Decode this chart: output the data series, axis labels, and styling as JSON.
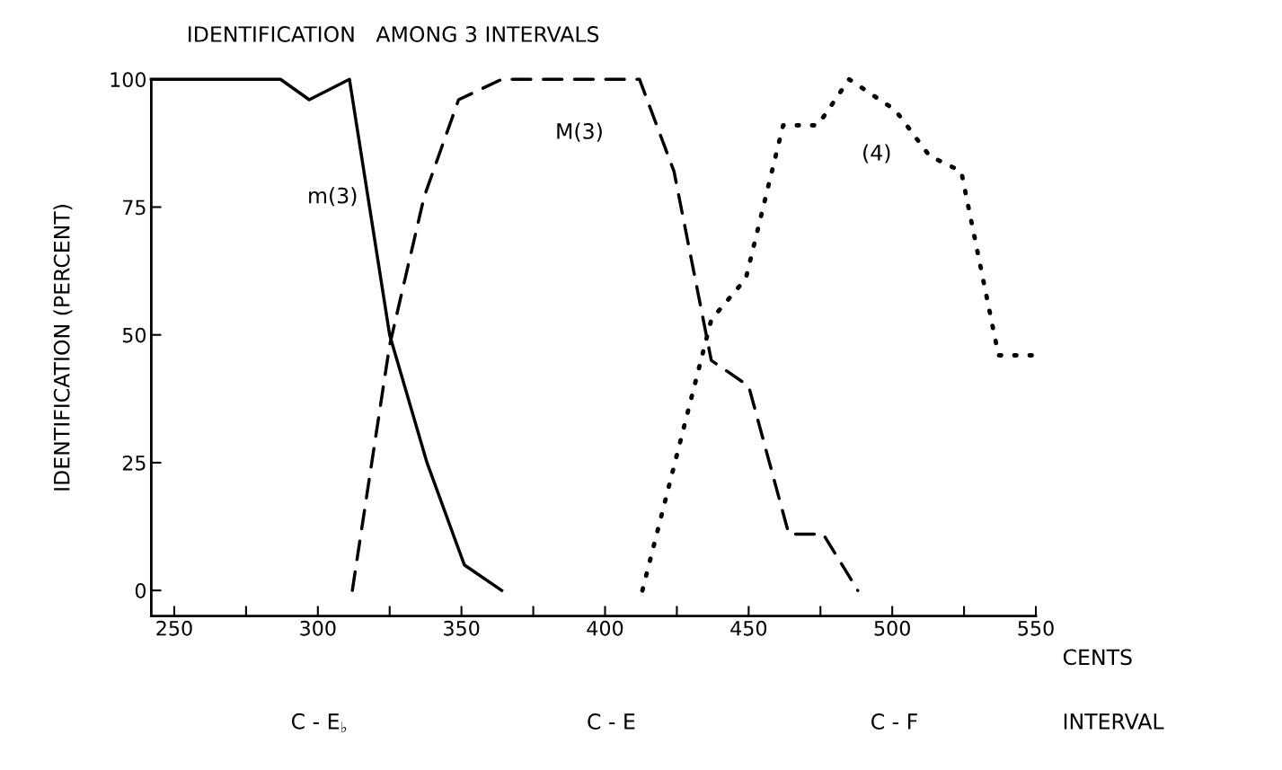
{
  "chart_data": {
    "type": "line",
    "title": "IDENTIFICATION   AMONG 3 INTERVALS",
    "xlabel": "CENTS",
    "ylabel": "IDENTIFICATION (PERCENT)",
    "series": [
      {
        "name": "m(3)",
        "color": "#000000",
        "line_style": "solid",
        "x": [
          242,
          287,
          297,
          311,
          325,
          338,
          351,
          364
        ],
        "values": [
          100,
          100,
          96,
          100,
          50,
          25,
          5,
          0
        ]
      },
      {
        "name": "M(3)",
        "color": "#000000",
        "line_style": "dashed",
        "x": [
          312,
          325,
          337,
          349,
          364,
          412,
          424,
          437,
          450,
          464,
          476,
          488
        ],
        "values": [
          0,
          48,
          77,
          96,
          100,
          100,
          82,
          45,
          40,
          11,
          11,
          0
        ]
      },
      {
        "name": "(4)",
        "color": "#000000",
        "line_style": "dotted",
        "x": [
          413,
          437,
          449,
          462,
          474,
          485,
          501,
          513,
          524,
          537,
          550
        ],
        "values": [
          0,
          53,
          61,
          91,
          91,
          100,
          94,
          85,
          82,
          46,
          46
        ]
      }
    ],
    "annotations": [
      "INTERVAL",
      "C - E$_{♭}$",
      "C - E",
      "C - F"
    ],
    "xlim": [
      242,
      550
    ],
    "ylim": [
      -5,
      100
    ],
    "xticks": [
      250,
      {
        "value": 275,
        "label": null
      },
      300,
      {
        "value": 325,
        "label": null
      },
      350,
      {
        "value": 375,
        "label": null
      },
      400,
      {
        "value": 425,
        "label": null
      },
      450,
      {
        "value": 475,
        "label": null
      },
      500,
      {
        "value": 525,
        "label": null
      },
      550
    ],
    "yticks": [
      0,
      25,
      50,
      75,
      100
    ],
    "grid": false,
    "legend": false,
    "marker": "none"
  }
}
